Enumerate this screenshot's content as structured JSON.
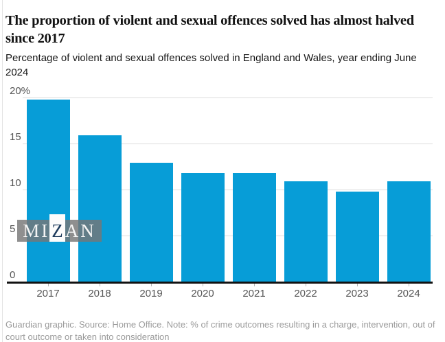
{
  "header": {
    "title": "The proportion of violent and sexual offences solved has almost halved since 2017",
    "subtitle": "Percentage of violent and sexual offences solved in England and Wales, year ending June 2024"
  },
  "chart_data": {
    "type": "bar",
    "categories": [
      "2017",
      "2018",
      "2019",
      "2020",
      "2021",
      "2022",
      "2023",
      "2024"
    ],
    "values": [
      19.8,
      15.9,
      12.9,
      11.8,
      11.8,
      10.9,
      9.8,
      10.9
    ],
    "title": "The proportion of violent and sexual offences solved has almost halved since 2017",
    "subtitle": "Percentage of violent and sexual offences solved in England and Wales, year ending June 2024",
    "xlabel": "",
    "ylabel": "",
    "ylim": [
      0,
      20
    ],
    "y_ticks": [
      {
        "value": 20,
        "label": "20%"
      },
      {
        "value": 15,
        "label": "15"
      },
      {
        "value": 10,
        "label": "10"
      },
      {
        "value": 5,
        "label": "5"
      },
      {
        "value": 0,
        "label": "0"
      }
    ],
    "grid": true,
    "legend": false,
    "bar_color": "#079dd7"
  },
  "watermark": {
    "prefix": "MI",
    "highlight": "Z",
    "suffix": "AN"
  },
  "footer": {
    "note": "Guardian graphic. Source: Home Office. Note: % of crime outcomes resulting in a charge, intervention, out of court outcome or taken into consideration"
  },
  "colors": {
    "bar": "#079dd7",
    "axis": "#121212",
    "gridline": "#dcdcdc",
    "axis_label": "#555555",
    "headline": "#121212",
    "footer_text": "#9b9b9b",
    "watermark_band": "rgba(118,118,118,0.82)",
    "watermark_z": "#1d3a5c"
  }
}
